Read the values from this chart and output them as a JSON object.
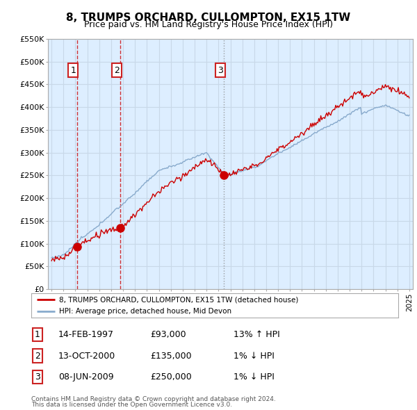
{
  "title": "8, TRUMPS ORCHARD, CULLOMPTON, EX15 1TW",
  "subtitle": "Price paid vs. HM Land Registry's House Price Index (HPI)",
  "ylim": [
    0,
    550000
  ],
  "xlim_start": 1994.7,
  "xlim_end": 2025.3,
  "yticks": [
    0,
    50000,
    100000,
    150000,
    200000,
    250000,
    300000,
    350000,
    400000,
    450000,
    500000,
    550000
  ],
  "ytick_labels": [
    "£0",
    "£50K",
    "£100K",
    "£150K",
    "£200K",
    "£250K",
    "£300K",
    "£350K",
    "£400K",
    "£450K",
    "£500K",
    "£550K"
  ],
  "sale_dates": [
    1997.12,
    2000.79,
    2009.44
  ],
  "sale_prices": [
    93000,
    135000,
    250000
  ],
  "sale_labels": [
    "1",
    "2",
    "3"
  ],
  "sale_date_str": [
    "14-FEB-1997",
    "13-OCT-2000",
    "08-JUN-2009"
  ],
  "sale_price_str": [
    "£93,000",
    "£135,000",
    "£250,000"
  ],
  "sale_hpi_str": [
    "13% ↑ HPI",
    "1% ↓ HPI",
    "1% ↓ HPI"
  ],
  "legend_line1": "8, TRUMPS ORCHARD, CULLOMPTON, EX15 1TW (detached house)",
  "legend_line2": "HPI: Average price, detached house, Mid Devon",
  "footer_line1": "Contains HM Land Registry data © Crown copyright and database right 2024.",
  "footer_line2": "This data is licensed under the Open Government Licence v3.0.",
  "red_color": "#cc0000",
  "blue_color": "#88aacc",
  "bg_color": "#ddeeff",
  "grid_color": "#c8d8e8",
  "title_fontsize": 11,
  "subtitle_fontsize": 9
}
